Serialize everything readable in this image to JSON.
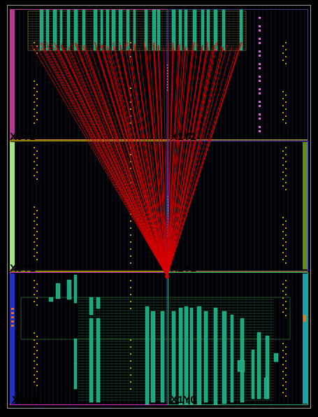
{
  "view": {
    "name": "device-floorplan",
    "background": "#000000"
  },
  "clock_regions": [
    {
      "id": "X0Y2",
      "label": "X0Y2",
      "color": "#b03a8c"
    },
    {
      "id": "X1Y2",
      "label": "X1Y2",
      "color": "#3c3c78"
    },
    {
      "id": "X0Y1",
      "label": "X0Y1",
      "color": "#c8b400"
    },
    {
      "id": "X1Y1",
      "label": "X1Y1",
      "color": "#5a3cd2"
    },
    {
      "id": "X0Y0",
      "label": "X0Y0",
      "color": "#c832c8"
    },
    {
      "id": "X1Y0",
      "label": "X1Y0",
      "color": "#2aa67a"
    }
  ],
  "colors": {
    "net": "#d40000",
    "cell_fill": "#1fa67e",
    "cell_outline": "#49d9a8",
    "slice_dot": "#c8a000",
    "io_bank": "#d070d0",
    "grid_line": "#1a1a55",
    "column_left_top": "#b03a8c",
    "column_left_mid": "#a8e08c",
    "column_left_bot": "#2030c0",
    "column_right_mid": "#5a8c1e",
    "column_right_bot": "#18a0b0"
  },
  "icons": {
    "routing_hub": "net-hub-icon"
  }
}
